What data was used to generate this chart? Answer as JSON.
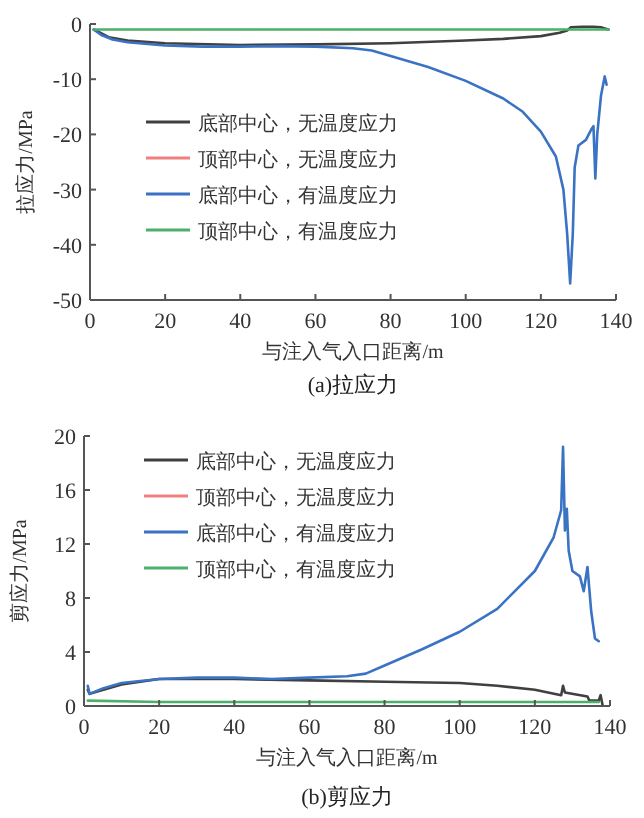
{
  "chart_data": [
    {
      "type": "line",
      "title": "(a)拉应力",
      "xlabel": "与注入气入口距离/m",
      "ylabel": "拉应力/MPa",
      "xlim": [
        0,
        140
      ],
      "ylim": [
        -50,
        0
      ],
      "xticks": [
        0,
        20,
        40,
        60,
        80,
        100,
        120,
        140
      ],
      "yticks": [
        -50,
        -40,
        -30,
        -20,
        -10,
        0
      ],
      "legend": "left",
      "grid": false,
      "marker": "none",
      "line_style": "solid",
      "series": [
        {
          "name": "底部中心，无温度应力",
          "color": "#404040",
          "x": [
            1,
            5,
            10,
            20,
            40,
            60,
            80,
            100,
            110,
            120,
            125,
            127,
            128,
            131,
            134,
            136,
            137,
            138
          ],
          "values": [
            -1,
            -2.4,
            -3,
            -3.5,
            -3.8,
            -3.7,
            -3.5,
            -3,
            -2.7,
            -2.2,
            -1.6,
            -1.2,
            -0.6,
            -0.5,
            -0.5,
            -0.6,
            -0.8,
            -1
          ]
        },
        {
          "name": "顶部中心，无温度应力",
          "color": "#f08080"
        },
        {
          "name": "底部中心，有温度应力",
          "color": "#3a72c4",
          "x": [
            1,
            3,
            6,
            10,
            20,
            30,
            40,
            50,
            60,
            70,
            75,
            80,
            90,
            100,
            110,
            115,
            120,
            124,
            126,
            127,
            127.8,
            128.5,
            129,
            130,
            132,
            133.5,
            134,
            134.5,
            135,
            136,
            137,
            137.5
          ],
          "values": [
            -1,
            -2,
            -2.8,
            -3.3,
            -3.9,
            -4.1,
            -4.1,
            -4,
            -4.1,
            -4.4,
            -4.8,
            -5.8,
            -7.8,
            -10.3,
            -13.5,
            -15.8,
            -19.5,
            -24,
            -30,
            -38,
            -47,
            -38,
            -26,
            -22,
            -21,
            -19,
            -18.5,
            -28,
            -20,
            -13,
            -9.5,
            -11
          ]
        },
        {
          "name": "顶部中心，有温度应力",
          "color": "#4caf6a",
          "x": [
            1,
            20,
            40,
            60,
            80,
            100,
            120,
            138
          ],
          "values": [
            -1,
            -1,
            -1,
            -1,
            -1,
            -1,
            -1,
            -1
          ]
        }
      ]
    },
    {
      "type": "line",
      "title": "(b)剪应力",
      "xlabel": "与注入气入口距离/m",
      "ylabel": "剪应力/MPa",
      "xlim": [
        0,
        140
      ],
      "ylim": [
        0,
        20
      ],
      "xticks": [
        0,
        20,
        40,
        60,
        80,
        100,
        120,
        140
      ],
      "yticks": [
        0,
        4,
        8,
        12,
        16,
        20
      ],
      "legend": "top left",
      "grid": false,
      "marker": "none",
      "line_style": "solid",
      "series": [
        {
          "name": "底部中心，无温度应力",
          "color": "#404040",
          "x": [
            1,
            1.5,
            10,
            20,
            40,
            60,
            80,
            100,
            110,
            120,
            127,
            127.5,
            128,
            134,
            134.5,
            137,
            137.5,
            138
          ],
          "values": [
            1.2,
            0.9,
            1.6,
            2,
            2,
            1.9,
            1.8,
            1.7,
            1.5,
            1.2,
            0.8,
            1.5,
            1,
            0.7,
            0.4,
            0.4,
            0.8,
            0.1
          ]
        },
        {
          "name": "顶部中心，无温度应力",
          "color": "#f08080"
        },
        {
          "name": "底部中心，有温度应力",
          "color": "#3a72c4",
          "x": [
            1,
            1.5,
            5,
            10,
            20,
            30,
            40,
            50,
            60,
            70,
            75,
            80,
            90,
            100,
            110,
            120,
            125,
            127,
            127.5,
            128,
            128.5,
            129,
            130,
            132,
            133,
            134,
            135,
            136,
            137
          ],
          "values": [
            1.5,
            0.9,
            1.3,
            1.7,
            2,
            2.1,
            2.1,
            2,
            2.1,
            2.2,
            2.4,
            3,
            4.2,
            5.5,
            7.2,
            10,
            12.5,
            14.5,
            19.2,
            13,
            14.6,
            11.5,
            10,
            9.6,
            8.5,
            10.3,
            7,
            5,
            4.8
          ]
        },
        {
          "name": "顶部中心，有温度应力",
          "color": "#4caf6a",
          "x": [
            1,
            20,
            60,
            100,
            137
          ],
          "values": [
            0.4,
            0.3,
            0.3,
            0.3,
            0.3
          ]
        }
      ]
    }
  ]
}
